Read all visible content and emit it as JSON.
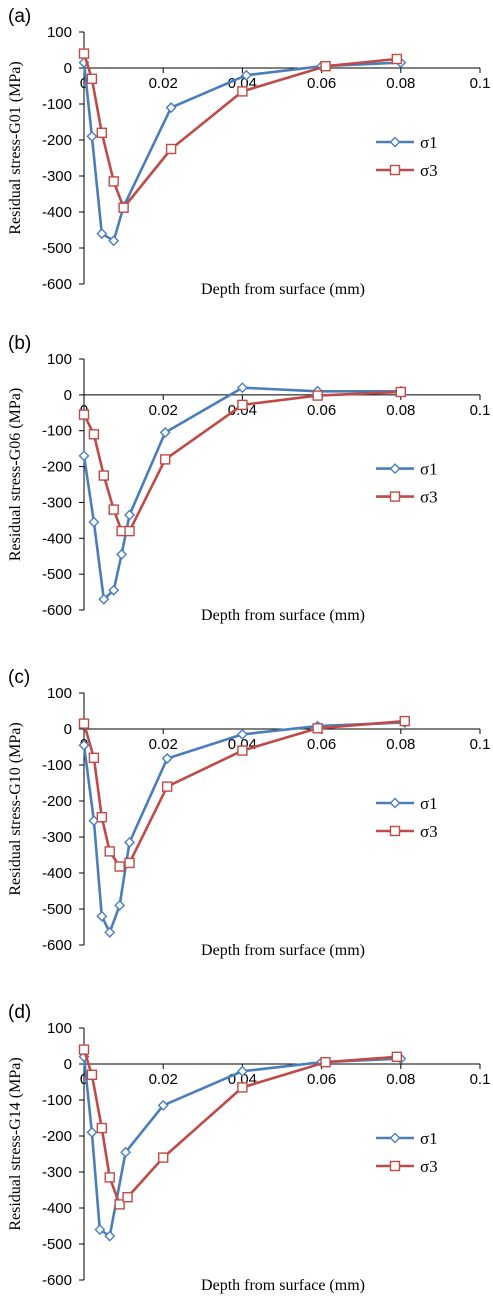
{
  "chart_data": [
    {
      "type": "line",
      "panel": "(a)",
      "xlabel": "Depth from surface (mm)",
      "ylabel": "Residual stress-G01 (MPa)",
      "xlim": [
        0,
        0.1
      ],
      "ylim": [
        -600,
        100
      ],
      "xticks": [
        "0",
        "0.02",
        "0.04",
        "0.06",
        "0.08",
        "0.1"
      ],
      "yticks": [
        "100",
        "0",
        "-100",
        "-200",
        "-300",
        "-400",
        "-500",
        "-600"
      ],
      "legend_position": "right",
      "series": [
        {
          "name": "σ1",
          "color": "#4a7ebb",
          "marker": "diamond",
          "x": [
            0,
            0.002,
            0.0045,
            0.0075,
            0.01,
            0.022,
            0.041,
            0.06,
            0.08
          ],
          "y": [
            15,
            -190,
            -460,
            -480,
            -385,
            -110,
            -20,
            5,
            15
          ]
        },
        {
          "name": "σ3",
          "color": "#be4b48",
          "marker": "square",
          "x": [
            0,
            0.002,
            0.0045,
            0.0075,
            0.01,
            0.022,
            0.04,
            0.061,
            0.079
          ],
          "y": [
            40,
            -30,
            -180,
            -315,
            -388,
            -225,
            -65,
            5,
            25
          ]
        }
      ]
    },
    {
      "type": "line",
      "panel": "(b)",
      "xlabel": "Depth from surface (mm)",
      "ylabel": "Residual stress-G06 (MPa)",
      "xlim": [
        0,
        0.1
      ],
      "ylim": [
        -600,
        100
      ],
      "xticks": [
        "0",
        "0.02",
        "0.04",
        "0.06",
        "0.08",
        "0.1"
      ],
      "yticks": [
        "100",
        "0",
        "-100",
        "-200",
        "-300",
        "-400",
        "-500",
        "-600"
      ],
      "legend_position": "right",
      "series": [
        {
          "name": "σ1",
          "color": "#4a7ebb",
          "marker": "diamond",
          "x": [
            0,
            0.0025,
            0.005,
            0.0075,
            0.0095,
            0.0115,
            0.0205,
            0.04,
            0.059,
            0.08
          ],
          "y": [
            -170,
            -355,
            -570,
            -545,
            -445,
            -335,
            -105,
            20,
            10,
            10
          ]
        },
        {
          "name": "σ3",
          "color": "#be4b48",
          "marker": "square",
          "x": [
            0,
            0.0025,
            0.005,
            0.0075,
            0.0095,
            0.0115,
            0.0205,
            0.04,
            0.059,
            0.08
          ],
          "y": [
            -55,
            -110,
            -225,
            -320,
            -380,
            -380,
            -180,
            -28,
            -2,
            8
          ]
        }
      ]
    },
    {
      "type": "line",
      "panel": "(c)",
      "xlabel": "Depth from surface (mm)",
      "ylabel": "Residual stress-G10 (MPa)",
      "xlim": [
        0,
        0.1
      ],
      "ylim": [
        -600,
        100
      ],
      "xticks": [
        "0",
        "0.02",
        "0.04",
        "0.06",
        "0.08",
        "0.1"
      ],
      "yticks": [
        "100",
        "0",
        "-100",
        "-200",
        "-300",
        "-400",
        "-500",
        "-600"
      ],
      "legend_position": "right",
      "series": [
        {
          "name": "σ1",
          "color": "#4a7ebb",
          "marker": "diamond",
          "x": [
            0,
            0.0025,
            0.0045,
            0.0065,
            0.009,
            0.0115,
            0.021,
            0.04,
            0.059,
            0.081
          ],
          "y": [
            -45,
            -255,
            -520,
            -565,
            -490,
            -315,
            -82,
            -15,
            8,
            18
          ]
        },
        {
          "name": "σ3",
          "color": "#be4b48",
          "marker": "square",
          "x": [
            0,
            0.0025,
            0.0045,
            0.0065,
            0.009,
            0.0115,
            0.021,
            0.04,
            0.059,
            0.081
          ],
          "y": [
            15,
            -80,
            -245,
            -340,
            -382,
            -372,
            -160,
            -60,
            2,
            22
          ]
        }
      ]
    },
    {
      "type": "line",
      "panel": "(d)",
      "xlabel": "Depth from surface (mm)",
      "ylabel": "Residual stress-G14 (MPa)",
      "xlim": [
        0,
        0.1
      ],
      "ylim": [
        -600,
        100
      ],
      "xticks": [
        "0",
        "0.02",
        "0.04",
        "0.06",
        "0.08",
        "0.1"
      ],
      "yticks": [
        "100",
        "0",
        "-100",
        "-200",
        "-300",
        "-400",
        "-500",
        "-600"
      ],
      "legend_position": "right",
      "series": [
        {
          "name": "σ1",
          "color": "#4a7ebb",
          "marker": "diamond",
          "x": [
            0,
            0.002,
            0.004,
            0.0065,
            0.0105,
            0.02,
            0.04,
            0.06,
            0.08
          ],
          "y": [
            20,
            -190,
            -460,
            -478,
            -245,
            -115,
            -20,
            5,
            15
          ]
        },
        {
          "name": "σ3",
          "color": "#be4b48",
          "marker": "square",
          "x": [
            0,
            0.002,
            0.0045,
            0.0065,
            0.009,
            0.011,
            0.02,
            0.04,
            0.061,
            0.079
          ],
          "y": [
            40,
            -30,
            -178,
            -315,
            -390,
            -370,
            -260,
            -65,
            5,
            20
          ]
        }
      ]
    }
  ]
}
